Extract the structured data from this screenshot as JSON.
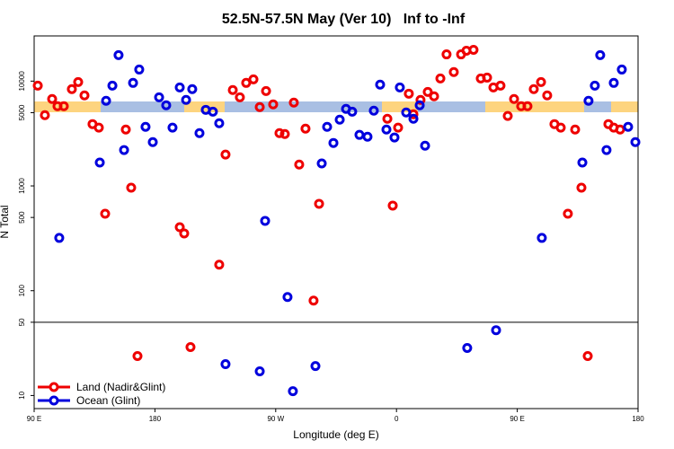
{
  "chart_data": {
    "type": "scatter",
    "title": "52.5N-57.5N May (Ver 10)   Inf to -Inf",
    "x_label": "Longitude (deg E)",
    "y_label": "N Total",
    "xlim": [
      90,
      540
    ],
    "ylim": [
      7.5,
      27000
    ],
    "log_y": true,
    "xticks": [
      {
        "value": 90,
        "label": "90 E"
      },
      180,
      {
        "value": 270,
        "label": "90 W"
      },
      {
        "value": 360,
        "label": "0"
      },
      {
        "value": 450,
        "label": "90 E"
      },
      {
        "value": 540,
        "label": "180"
      }
    ],
    "yticks": [
      10,
      50,
      100,
      500,
      1000,
      5000,
      10000
    ],
    "reference_line": 50,
    "legend": "lower left",
    "series": [
      {
        "name": "Land (Nadir&Glint)",
        "color": "#ee0000",
        "x": [
          92.7,
          98.0,
          103.4,
          107.4,
          112.1,
          118.1,
          122.8,
          127.5,
          133.5,
          138.2,
          142.9,
          158.3,
          162.3,
          167.0,
          198.5,
          201.8,
          206.5,
          227.9,
          232.6,
          238.0,
          243.3,
          248.0,
          253.4,
          258.1,
          262.8,
          268.1,
          272.8,
          276.8,
          283.5,
          287.5,
          292.2,
          298.2,
          302.3,
          353.2,
          357.2,
          361.2,
          369.2,
          372.6,
          377.9,
          383.3,
          388.0,
          392.7,
          397.3,
          402.7,
          408.1,
          412.1,
          417.4,
          422.8,
          427.5,
          432.2,
          437.5,
          442.9,
          447.6,
          452.9,
          457.6,
          462.3,
          467.7,
          472.3,
          477.7,
          482.4,
          487.7,
          493.1,
          497.8,
          502.5,
          517.9,
          521.9,
          526.6
        ],
        "values": [
          9060,
          4730,
          6750,
          5760,
          5760,
          8380,
          9800,
          7300,
          3890,
          3600,
          543,
          3450,
          962,
          23.8,
          404,
          352,
          29,
          177,
          1990,
          8220,
          7010,
          9620,
          10400,
          5650,
          8050,
          6000,
          3190,
          3130,
          6240,
          1600,
          3520,
          80.5,
          675,
          4370,
          649,
          3600,
          7590,
          4830,
          6620,
          7890,
          7160,
          10600,
          18000,
          12200,
          18000,
          19500,
          19900,
          10600,
          10800,
          8710,
          9060,
          4650,
          6750,
          5760,
          5760,
          8380,
          9800,
          7300,
          3890,
          3600,
          543,
          3450,
          962,
          23.8,
          3890,
          3600,
          3450
        ]
      },
      {
        "name": "Ocean (Glint)",
        "color": "#0000dd",
        "x": [
          108.7,
          138.9,
          143.6,
          148.3,
          152.9,
          157.0,
          163.7,
          168.3,
          173.0,
          178.4,
          183.1,
          188.4,
          193.1,
          198.5,
          203.2,
          207.8,
          213.2,
          217.9,
          223.2,
          227.9,
          232.6,
          258.1,
          262.1,
          278.8,
          282.8,
          299.6,
          304.3,
          308.3,
          313.0,
          317.7,
          322.4,
          327.0,
          332.4,
          338.4,
          343.1,
          347.8,
          352.5,
          358.5,
          362.5,
          367.2,
          372.6,
          377.3,
          381.3,
          412.7,
          434.2,
          468.3,
          498.5,
          503.1,
          507.8,
          511.8,
          516.5,
          521.9,
          527.9,
          532.6,
          538.0
        ],
        "values": [
          319,
          1670,
          6490,
          9060,
          17700,
          2200,
          9620,
          12900,
          3660,
          2620,
          7010,
          5880,
          3600,
          8710,
          6620,
          8380,
          3190,
          5320,
          5110,
          3960,
          19.9,
          17,
          464,
          87,
          11,
          19.1,
          1640,
          3660,
          2570,
          4290,
          5430,
          5110,
          3070,
          2950,
          5220,
          9250,
          3450,
          2900,
          8710,
          5020,
          4370,
          5880,
          2420,
          28.4,
          42,
          319,
          1670,
          6490,
          9060,
          17700,
          2200,
          9620,
          12900,
          3660,
          2620
        ]
      }
    ]
  }
}
